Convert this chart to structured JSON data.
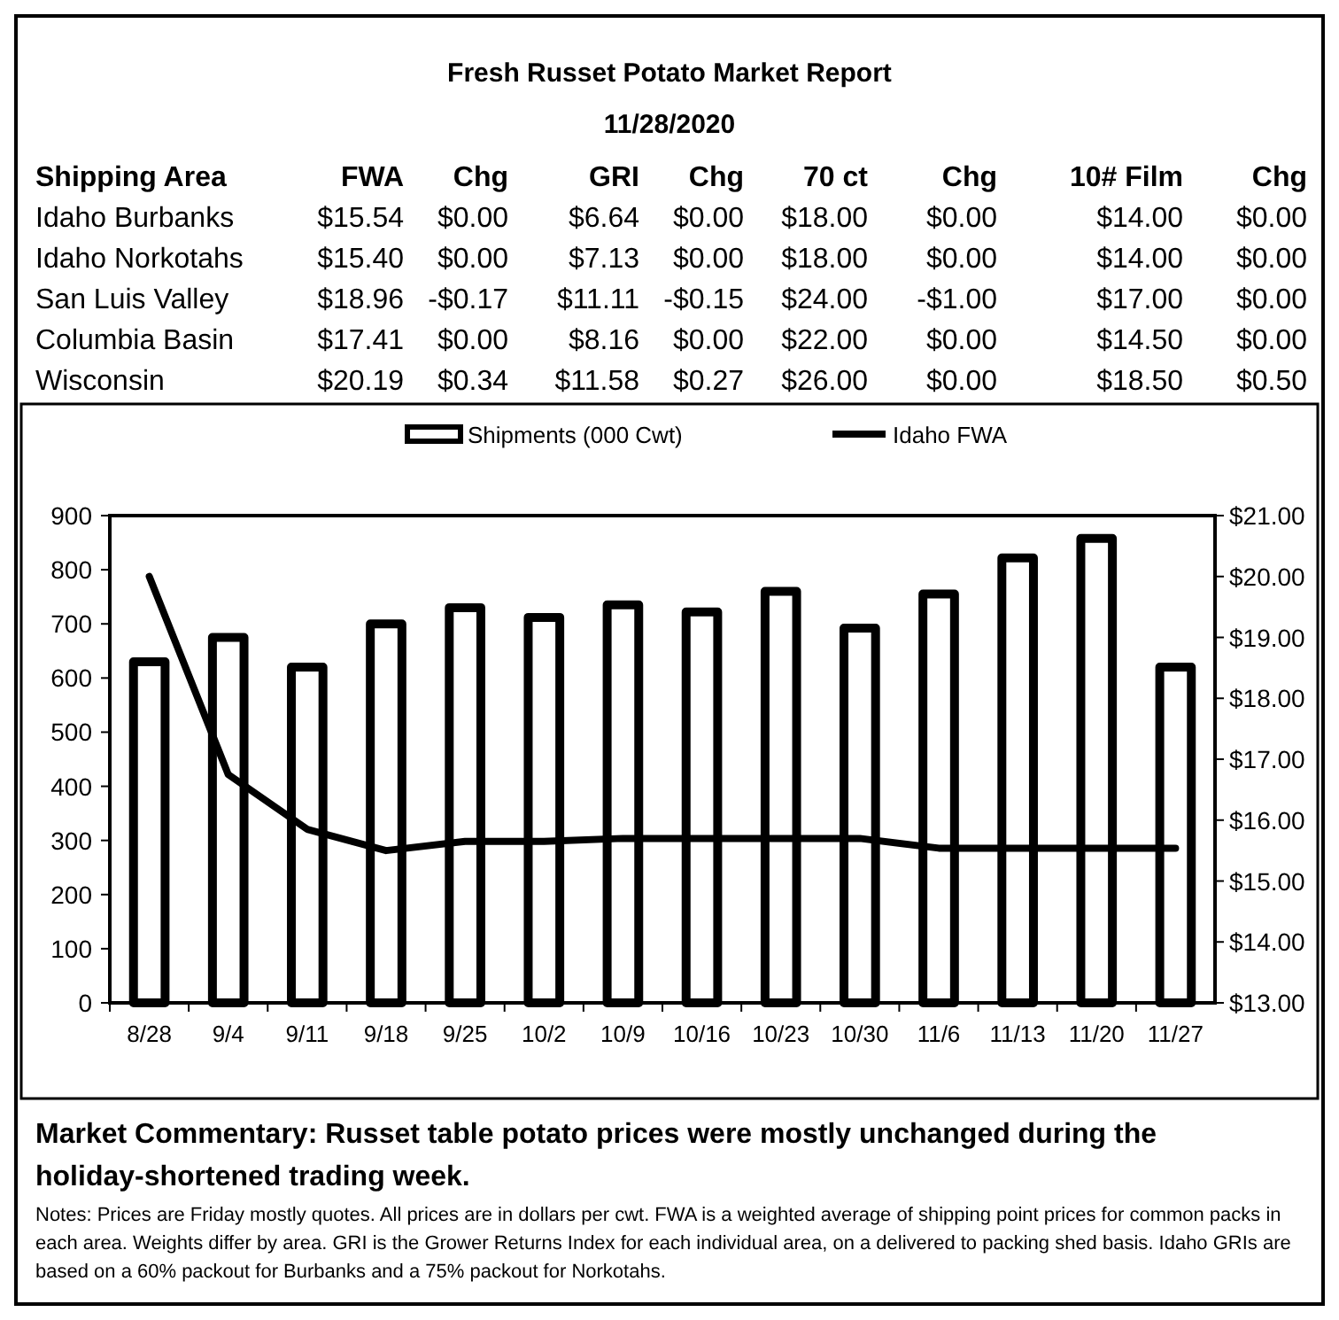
{
  "chart_data": {
    "type": "bar",
    "title": "Fresh Russet Potato Market Report",
    "subtitle": "11/28/2020",
    "categories": [
      "8/28",
      "9/4",
      "9/11",
      "9/18",
      "9/25",
      "10/2",
      "10/9",
      "10/16",
      "10/23",
      "10/30",
      "11/6",
      "11/13",
      "11/20",
      "11/27"
    ],
    "series": [
      {
        "name": "Shipments (000 Cwt)",
        "color": "#ffffff",
        "values": [
          630,
          675,
          620,
          700,
          730,
          712,
          735,
          722,
          760,
          692,
          755,
          822,
          858,
          620
        ]
      },
      {
        "name": "Idaho FWA",
        "type": "line",
        "axis": "y2",
        "color": "#000000",
        "values": [
          20.0,
          16.75,
          15.85,
          15.5,
          15.65,
          15.65,
          15.7,
          15.7,
          15.7,
          15.7,
          15.54,
          15.54,
          15.54,
          15.54
        ]
      }
    ],
    "ylim": [
      0,
      900
    ],
    "yticks": [
      0,
      100,
      200,
      300,
      400,
      500,
      600,
      700,
      800,
      900
    ],
    "y2lim": [
      13,
      21
    ],
    "y2ticks": [
      {
        "value": 13,
        "label": "$13.00"
      },
      {
        "value": 14,
        "label": "$14.00"
      },
      {
        "value": 15,
        "label": "$15.00"
      },
      {
        "value": 16,
        "label": "$16.00"
      },
      {
        "value": 17,
        "label": "$17.00"
      },
      {
        "value": 18,
        "label": "$18.00"
      },
      {
        "value": 19,
        "label": "$19.00"
      },
      {
        "value": 20,
        "label": "$20.00"
      },
      {
        "value": 21,
        "label": "$21.00"
      }
    ],
    "grid": false,
    "legend": "top",
    "marker": "none",
    "line_style": "solid",
    "annotations": [
      "Shipping Area",
      "FWA",
      "Chg",
      "GRI",
      "Chg",
      "70 ct",
      "Chg",
      "10# Film",
      "Chg",
      "Idaho Burbanks",
      "$15.54",
      "$0.00",
      "$6.64",
      "$0.00",
      "$18.00",
      "$0.00",
      "$14.00",
      "$0.00",
      "Idaho Norkotahs",
      "$15.40",
      "$0.00",
      "$7.13",
      "$0.00",
      "$18.00",
      "$0.00",
      "$14.00",
      "$0.00",
      "San Luis Valley",
      "$18.96",
      "-$0.17",
      "$11.11",
      "-$0.15",
      "$24.00",
      "-$1.00",
      "$17.00",
      "$0.00",
      "Columbia Basin",
      "$17.41",
      "$0.00",
      "$8.16",
      "$0.00",
      "$22.00",
      "$0.00",
      "$14.50",
      "$0.00",
      "Wisconsin",
      "$20.19",
      "$0.34",
      "$11.58",
      "$0.27",
      "$26.00",
      "$0.00",
      "$18.50",
      "$0.50",
      "Market Commentary: Russet table potato prices were mostly unchanged during the holiday-shortened trading week.",
      "Notes: Prices are Friday mostly quotes. All prices are in dollars per cwt. FWA is a weighted average of shipping point prices for  common packs in each area. Weights differ by area. GRI is the Grower Returns Index for each individual area, on a delivered to packing shed basis. Idaho GRIs are based on a 60% packout for Burbanks and a 75% packout for Norkotahs."
    ]
  }
}
